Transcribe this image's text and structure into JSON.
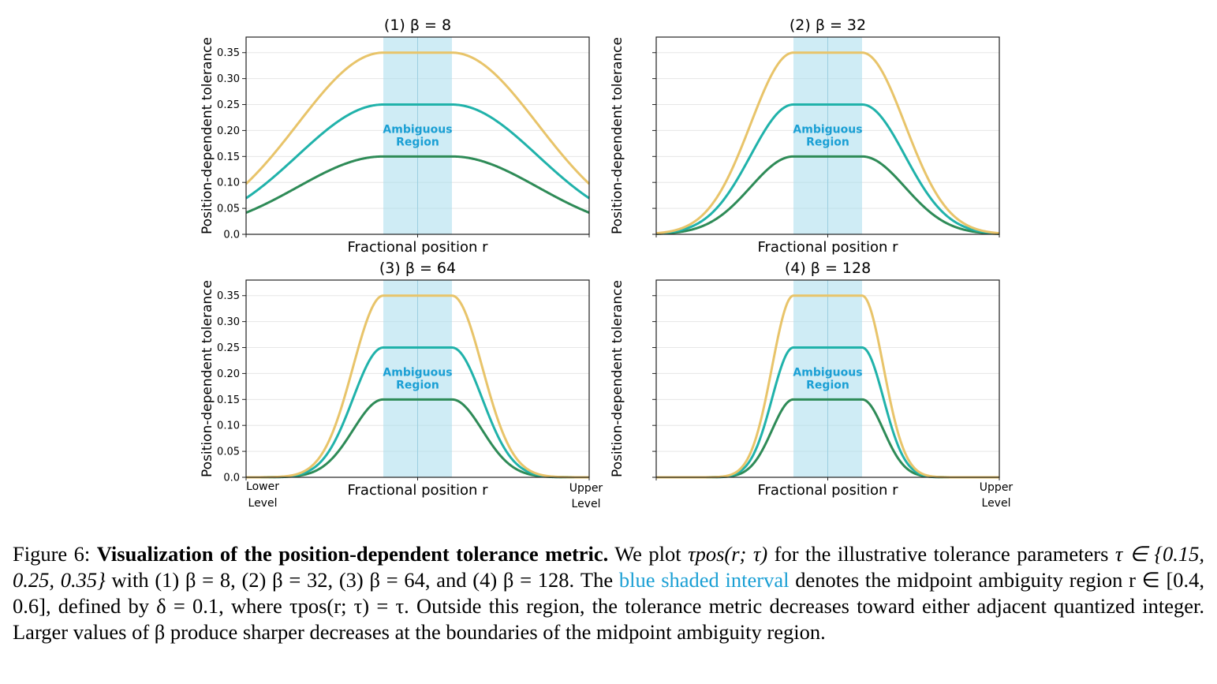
{
  "figure": {
    "panels": [
      {
        "title": "(1) β = 8",
        "beta": 8
      },
      {
        "title": "(2) β = 32",
        "beta": 32
      },
      {
        "title": "(3) β = 64",
        "beta": 64
      },
      {
        "title": "(4) β = 128",
        "beta": 128
      }
    ],
    "xlabel": "Fractional position r",
    "ylabel": "Position-dependent tolerance",
    "ambiguous_label": [
      "Ambiguous",
      "Region"
    ],
    "end_labels": {
      "lower": [
        "Lower",
        "Level"
      ],
      "upper": [
        "Upper",
        "Level"
      ]
    }
  },
  "chart_data": [
    {
      "type": "line",
      "title": "(1) β = 8",
      "beta": 8,
      "xlabel": "Fractional position r",
      "ylabel": "Position-dependent tolerance",
      "xlim": [
        0,
        1
      ],
      "ylim": [
        0,
        0.38
      ],
      "yticks": [
        0.0,
        0.05,
        0.1,
        0.15,
        0.2,
        0.25,
        0.3,
        0.35
      ],
      "ytick_labels": [
        "0.0",
        "0.05",
        "0.10",
        "0.15",
        "0.20",
        "0.25",
        "0.30",
        "0.35"
      ],
      "shaded_interval": [
        0.4,
        0.6
      ],
      "shaded_label": "Ambiguous Region",
      "series": [
        {
          "tau": 0.15,
          "color": "#2e8b57"
        },
        {
          "tau": 0.25,
          "color": "#20b2aa"
        },
        {
          "tau": 0.35,
          "color": "#e8c46a"
        }
      ],
      "grid": true
    },
    {
      "type": "line",
      "title": "(2) β = 32",
      "beta": 32,
      "xlabel": "Fractional position r",
      "ylabel": "Position-dependent tolerance",
      "xlim": [
        0,
        1
      ],
      "ylim": [
        0,
        0.38
      ],
      "shaded_interval": [
        0.4,
        0.6
      ],
      "shaded_label": "Ambiguous Region",
      "series": [
        {
          "tau": 0.15,
          "color": "#2e8b57"
        },
        {
          "tau": 0.25,
          "color": "#20b2aa"
        },
        {
          "tau": 0.35,
          "color": "#e8c46a"
        }
      ],
      "grid": true
    },
    {
      "type": "line",
      "title": "(3) β = 64",
      "beta": 64,
      "xlabel": "Fractional position r",
      "ylabel": "Position-dependent tolerance",
      "xlim": [
        0,
        1
      ],
      "ylim": [
        0,
        0.38
      ],
      "yticks": [
        0.0,
        0.05,
        0.1,
        0.15,
        0.2,
        0.25,
        0.3,
        0.35
      ],
      "ytick_labels": [
        "0.0",
        "0.05",
        "0.10",
        "0.15",
        "0.20",
        "0.25",
        "0.30",
        "0.35"
      ],
      "shaded_interval": [
        0.4,
        0.6
      ],
      "shaded_label": "Ambiguous Region",
      "x_end_labels": [
        "Lower Level",
        "Upper Level"
      ],
      "series": [
        {
          "tau": 0.15,
          "color": "#2e8b57"
        },
        {
          "tau": 0.25,
          "color": "#20b2aa"
        },
        {
          "tau": 0.35,
          "color": "#e8c46a"
        }
      ],
      "grid": true
    },
    {
      "type": "line",
      "title": "(4) β = 128",
      "beta": 128,
      "xlabel": "Fractional position r",
      "ylabel": "Position-dependent tolerance",
      "xlim": [
        0,
        1
      ],
      "ylim": [
        0,
        0.38
      ],
      "shaded_interval": [
        0.4,
        0.6
      ],
      "shaded_label": "Ambiguous Region",
      "x_end_labels": [
        "Upper Level"
      ],
      "series": [
        {
          "tau": 0.15,
          "color": "#2e8b57"
        },
        {
          "tau": 0.25,
          "color": "#20b2aa"
        },
        {
          "tau": 0.35,
          "color": "#e8c46a"
        }
      ],
      "grid": true
    }
  ],
  "caption": {
    "fig_label": "Figure 6:",
    "bold_title": "Visualization of the position-dependent tolerance metric.",
    "t1": "We plot",
    "tau_pos": "τpos(r; τ)",
    "t2": "for the illustrative tolerance parameters",
    "tau_set": "τ ∈ {0.15, 0.25, 0.35}",
    "t3": "with (1) β = 8, (2) β = 32, (3) β = 64, and (4) β = 128. The",
    "highlight": "blue shaded interval",
    "t4": "denotes the midpoint ambiguity region r ∈ [0.4, 0.6], defined by δ = 0.1, where τpos(r; τ) = τ. Outside this region, the tolerance metric decreases toward either adjacent quantized integer. Larger values of β produce sharper decreases at the boundaries of the midpoint ambiguity region."
  }
}
